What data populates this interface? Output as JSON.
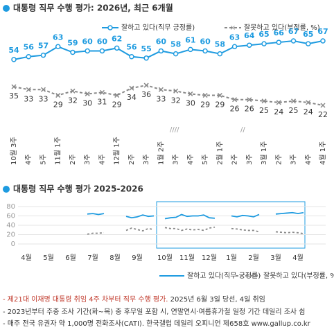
{
  "chart_data": [
    {
      "type": "line",
      "title": "대통령 직무 수행 평가: 2026년, 최근 6개월",
      "categories": [
        "10월 3주",
        "4주",
        "5주",
        "11월 1주",
        "2주",
        "3주",
        "4주",
        "12월 1주",
        "2주",
        "3주",
        "1월 2주",
        "3주",
        "4주",
        "5주",
        "2월 1주",
        "2주",
        "3주",
        "3월 1주",
        "2주",
        "3주",
        "4주",
        "4월 1주"
      ],
      "series": [
        {
          "name": "잘하고 있다(직무 긍정률)",
          "color": "#1e9be0",
          "values": [
            54,
            56,
            57,
            63,
            59,
            60,
            60,
            62,
            56,
            55,
            60,
            58,
            61,
            60,
            58,
            63,
            64,
            65,
            66,
            67,
            65,
            67
          ]
        },
        {
          "name": "잘못하고 있다(부정률, %)",
          "color": "#888888",
          "values": [
            35,
            33,
            33,
            29,
            32,
            30,
            31,
            29,
            34,
            36,
            33,
            32,
            30,
            29,
            29,
            26,
            26,
            25,
            24,
            25,
            24,
            22
          ]
        }
      ]
    },
    {
      "type": "line",
      "title": "대통령 직무 수행 평가 2025-2026",
      "categories": [
        null,
        "4월",
        null,
        null,
        null,
        "5월",
        null,
        null,
        null,
        "6월",
        null,
        null,
        null,
        "7월",
        null,
        null,
        null,
        "8월",
        null,
        null,
        null,
        "9월",
        null,
        null,
        null,
        null,
        "10월",
        null,
        null,
        null,
        "11월",
        null,
        null,
        null,
        "12월",
        null,
        null,
        null,
        "1월",
        null,
        null,
        null,
        "2월",
        null,
        null,
        null,
        "3월",
        null,
        null,
        null,
        "4월",
        null,
        null,
        null
      ],
      "series": [
        {
          "name": "잘하고 있다(직무 긍정률)",
          "color": "#1e9be0",
          "values": [
            null,
            null,
            null,
            null,
            null,
            null,
            null,
            null,
            null,
            null,
            null,
            null,
            64,
            65,
            63,
            65,
            null,
            null,
            null,
            59,
            56,
            58,
            62,
            59,
            60,
            null,
            54,
            56,
            57,
            63,
            59,
            60,
            60,
            62,
            56,
            55,
            null,
            null,
            60,
            58,
            61,
            60,
            58,
            63,
            null,
            null,
            64,
            65,
            66,
            67,
            65,
            67,
            null,
            null
          ]
        },
        {
          "name": "잘못하고 있다(부정률, %)",
          "color": "#888888",
          "values": [
            null,
            null,
            null,
            null,
            null,
            null,
            null,
            null,
            null,
            null,
            null,
            null,
            21,
            23,
            23,
            24,
            null,
            null,
            null,
            29,
            34,
            31,
            28,
            33,
            31,
            null,
            35,
            33,
            33,
            29,
            32,
            30,
            31,
            29,
            34,
            36,
            null,
            null,
            33,
            32,
            30,
            29,
            29,
            26,
            null,
            null,
            26,
            25,
            24,
            25,
            24,
            22,
            null,
            null
          ]
        }
      ],
      "ylim": [
        0,
        80
      ],
      "yticks": [
        0,
        20,
        40,
        60,
        80
      ],
      "grid": true
    }
  ],
  "notes": [
    [
      "- 제21대 이재명 대통령 취임 4주 차부터 직무 수행 평가.",
      " 2025년 6월 3일 당선, 4일 취임"
    ],
    "- 2023년부터 주중 조사 기간(화~목) 중 후무일 포함 시, 연말연시·여름휴가철 일정 기간 데일리 조사 쉼",
    "- 매주 전국 유권자 약 1,000명 전화조사(CATI). 한국갤럽 데일리 오피니언 제658호 www.gallup.co.kr"
  ]
}
